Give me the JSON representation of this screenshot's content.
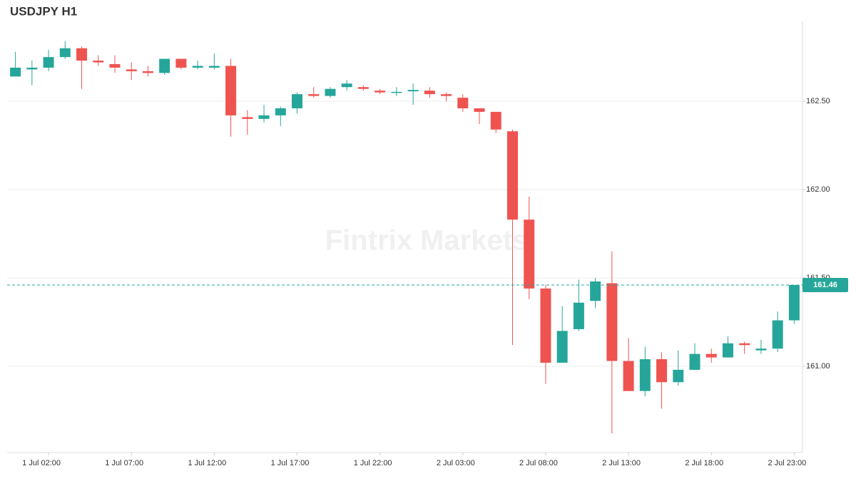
{
  "chart_data": {
    "type": "candlestick",
    "title": "USDJPY H1",
    "watermark": "Fintrix Markets",
    "categories": [
      null,
      null,
      "1 Jul 02:00",
      null,
      null,
      null,
      null,
      "1 Jul 07:00",
      null,
      null,
      null,
      null,
      "1 Jul 12:00",
      null,
      null,
      null,
      null,
      "1 Jul 17:00",
      null,
      null,
      null,
      null,
      "1 Jul 22:00",
      null,
      null,
      null,
      null,
      "2 Jul 03:00",
      null,
      null,
      null,
      null,
      "2 Jul 08:00",
      null,
      null,
      null,
      null,
      "2 Jul 13:00",
      null,
      null,
      null,
      null,
      "2 Jul 18:00",
      null,
      null,
      null,
      null,
      "2 Jul 23:00"
    ],
    "open": [
      162.64,
      162.68,
      162.69,
      162.75,
      162.8,
      162.73,
      162.71,
      162.68,
      162.67,
      162.66,
      162.74,
      162.69,
      162.69,
      162.7,
      162.41,
      162.4,
      162.42,
      162.46,
      162.54,
      162.53,
      162.58,
      162.58,
      162.56,
      162.548,
      162.556,
      162.56,
      162.54,
      162.52,
      162.46,
      162.44,
      162.33,
      161.83,
      161.44,
      161.02,
      161.21,
      161.37,
      161.47,
      161.03,
      160.86,
      161.04,
      160.91,
      160.98,
      161.07,
      161.05,
      161.13,
      161.09,
      161.1,
      161.26
    ],
    "high": [
      162.78,
      162.73,
      162.79,
      162.84,
      162.81,
      162.76,
      162.76,
      162.72,
      162.7,
      162.74,
      162.74,
      162.73,
      162.77,
      162.74,
      162.45,
      162.48,
      162.47,
      162.55,
      162.58,
      162.58,
      162.62,
      162.59,
      162.57,
      162.58,
      162.6,
      162.58,
      162.55,
      162.54,
      162.46,
      162.44,
      162.34,
      161.96,
      161.46,
      161.34,
      161.49,
      161.5,
      161.65,
      161.16,
      161.11,
      161.08,
      161.09,
      161.13,
      161.1,
      161.17,
      161.14,
      161.15,
      161.31,
      161.46
    ],
    "low": [
      162.64,
      162.59,
      162.67,
      162.74,
      162.57,
      162.7,
      162.66,
      162.62,
      162.64,
      162.65,
      162.68,
      162.68,
      162.68,
      162.3,
      162.31,
      162.38,
      162.36,
      162.43,
      162.52,
      162.52,
      162.56,
      162.56,
      162.54,
      162.53,
      162.48,
      162.52,
      162.5,
      162.44,
      162.37,
      162.32,
      161.12,
      161.38,
      160.9,
      161.02,
      161.2,
      161.33,
      160.62,
      160.86,
      160.83,
      160.76,
      160.89,
      160.98,
      161.02,
      161.05,
      161.07,
      161.07,
      161.08,
      161.24
    ],
    "close": [
      162.69,
      162.69,
      162.75,
      162.8,
      162.73,
      162.72,
      162.69,
      162.67,
      162.66,
      162.74,
      162.69,
      162.7,
      162.7,
      162.42,
      162.4,
      162.42,
      162.46,
      162.54,
      162.53,
      162.57,
      162.6,
      162.57,
      162.55,
      162.553,
      162.564,
      162.54,
      162.53,
      162.46,
      162.44,
      162.34,
      161.83,
      161.44,
      161.02,
      161.2,
      161.36,
      161.48,
      161.03,
      160.86,
      161.04,
      160.91,
      160.98,
      161.07,
      161.05,
      161.13,
      161.12,
      161.1,
      161.26,
      161.46
    ],
    "up_color": "#26a69a",
    "down_color": "#ef5350",
    "ylim": [
      160.512,
      162.952
    ],
    "yticks": [
      {
        "value": 161.0,
        "label": "161.00"
      },
      {
        "value": 161.5,
        "label": "161.50"
      },
      {
        "value": 162.0,
        "label": "162.00"
      },
      {
        "value": 162.5,
        "label": "162.50"
      }
    ],
    "grid": true,
    "last_price": 161.46
  }
}
